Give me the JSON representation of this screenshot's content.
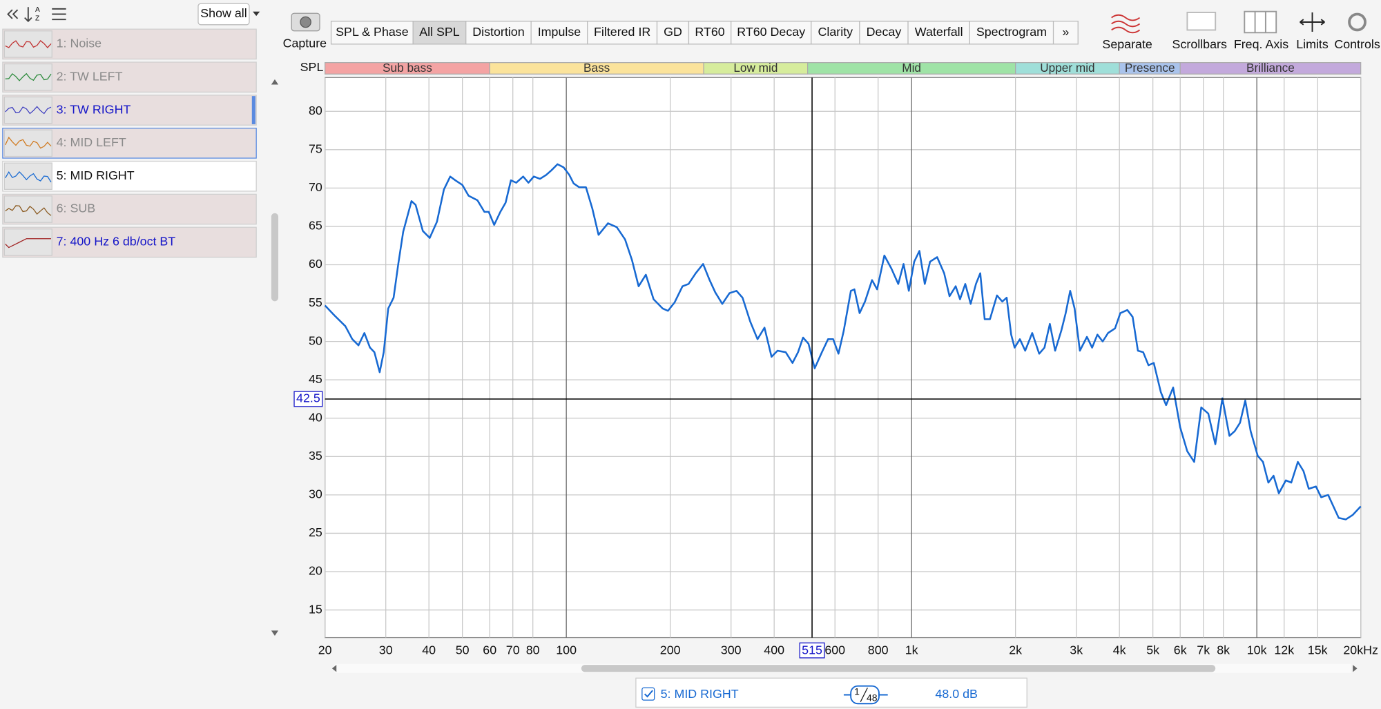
{
  "sidebar": {
    "show_all": "Show all",
    "items": [
      "1: Noise",
      "2: TW LEFT",
      "3: TW RIGHT",
      "4: MID LEFT",
      "5: MID RIGHT",
      "6: SUB",
      "7: 400 Hz 6 db/oct BT"
    ]
  },
  "toolbar": {
    "capture": "Capture",
    "tabs": [
      "SPL & Phase",
      "All SPL",
      "Distortion",
      "Impulse",
      "Filtered IR",
      "GD",
      "RT60",
      "RT60 Decay",
      "Clarity",
      "Decay",
      "Waterfall",
      "Spectrogram"
    ],
    "tools": [
      "Separate",
      "Scrollbars",
      "Freq. Axis",
      "Limits",
      "Controls"
    ]
  },
  "chart_data": {
    "type": "line",
    "y_label": "SPL",
    "log_x": true,
    "grid": true,
    "xlim": [
      20,
      20000
    ],
    "ylim": [
      11.4,
      84.4
    ],
    "xticks": [
      20,
      30,
      40,
      50,
      60,
      70,
      80,
      100,
      200,
      300,
      400,
      600,
      800,
      {
        "value": 1000,
        "label": "1k"
      },
      {
        "value": 2000,
        "label": "2k"
      },
      {
        "value": 3000,
        "label": "3k"
      },
      {
        "value": 4000,
        "label": "4k"
      },
      {
        "value": 5000,
        "label": "5k"
      },
      {
        "value": 6000,
        "label": "6k"
      },
      {
        "value": 7000,
        "label": "7k"
      },
      {
        "value": 8000,
        "label": "8k"
      },
      {
        "value": 10000,
        "label": "10k"
      },
      {
        "value": 12000,
        "label": "12k"
      },
      {
        "value": 15000,
        "label": "15k"
      },
      {
        "value": 20000,
        "label": "20kHz"
      }
    ],
    "yticks": [
      15,
      20,
      25,
      30,
      35,
      40,
      45,
      50,
      55,
      60,
      65,
      70,
      75,
      80
    ],
    "bands": [
      {
        "name": "Sub bass",
        "from": 20,
        "to": 60,
        "color": "#f4a3a3"
      },
      {
        "name": "Bass",
        "from": 60,
        "to": 250,
        "color": "#fbe39b"
      },
      {
        "name": "Low mid",
        "from": 250,
        "to": 500,
        "color": "#d6ec9c"
      },
      {
        "name": "Mid",
        "from": 500,
        "to": 2000,
        "color": "#9fe3a6"
      },
      {
        "name": "Upper mid",
        "from": 2000,
        "to": 4000,
        "color": "#9fdfd9"
      },
      {
        "name": "Presence",
        "from": 4000,
        "to": 6000,
        "color": "#a9c3ec"
      },
      {
        "name": "Brilliance",
        "from": 6000,
        "to": 20000,
        "color": "#c3a9dc"
      }
    ],
    "cursor": {
      "x": 515,
      "y": 42.5
    },
    "x": [
      20,
      21.3,
      22.9,
      24.0,
      25.0,
      26.0,
      27.0,
      27.8,
      28.8,
      29.6,
      30.5,
      31.6,
      32.6,
      33.7,
      35.6,
      36.6,
      38.4,
      40.2,
      42.2,
      44.2,
      46.1,
      47.7,
      50.0,
      52.1,
      55.3,
      57.9,
      59.6,
      61.8,
      64.4,
      66.7,
      69.1,
      71.6,
      75.0,
      77.7,
      80.5,
      83.9,
      87.4,
      90.5,
      94.3,
      98.2,
      102,
      105,
      109,
      114,
      119,
      124,
      132,
      140,
      148,
      155,
      162,
      170,
      179,
      190,
      197,
      206,
      217,
      226,
      237,
      249,
      260,
      270,
      283,
      297,
      311,
      324,
      341,
      358,
      375,
      393,
      409,
      432,
      452,
      469,
      485,
      503,
      524,
      550,
      573,
      593,
      614,
      636,
      667,
      683,
      707,
      733,
      768,
      795,
      834,
      874,
      915,
      948,
      982,
      1018,
      1054,
      1092,
      1131,
      1186,
      1243,
      1288,
      1342,
      1381,
      1431,
      1483,
      1536,
      1581,
      1628,
      1687,
      1768,
      1831,
      1886,
      1943,
      1988,
      2060,
      2134,
      2236,
      2343,
      2427,
      2515,
      2605,
      2715,
      2796,
      2880,
      2966,
      3073,
      3220,
      3334,
      3454,
      3578,
      3707,
      3884,
      4023,
      4217,
      4368,
      4525,
      4688,
      4856,
      5031,
      5272,
      5461,
      5723,
      5998,
      6286,
      6588,
      6905,
      7237,
      7585,
      7950,
      8332,
      8631,
      8941,
      9262,
      9595,
      10060,
      10420,
      10800,
      11180,
      11580,
      12140,
      12580,
      13150,
      13650,
      14140,
      14830,
      15360,
      16090,
      17270,
      18100,
      18970,
      20000
    ],
    "series": [
      {
        "name": "5: MID RIGHT",
        "color": "#1769d2",
        "values": [
          54.7,
          53.4,
          52.0,
          50.3,
          49.5,
          51.1,
          49.2,
          48.6,
          46.0,
          48.6,
          54.3,
          55.7,
          60.1,
          64.3,
          68.3,
          67.8,
          64.4,
          63.5,
          65.6,
          69.8,
          71.5,
          71.0,
          70.4,
          69.0,
          68.4,
          66.9,
          66.9,
          65.2,
          66.9,
          68.1,
          71.0,
          70.7,
          71.5,
          70.7,
          71.5,
          71.2,
          71.7,
          72.3,
          73.1,
          72.7,
          71.7,
          70.6,
          70.1,
          70.1,
          67.3,
          63.9,
          65.4,
          64.9,
          63.3,
          60.6,
          57.2,
          58.7,
          55.5,
          54.3,
          54.0,
          55.1,
          57.2,
          57.5,
          58.9,
          60.1,
          58.0,
          56.4,
          54.9,
          56.3,
          56.6,
          55.7,
          52.6,
          50.3,
          51.8,
          48.0,
          48.8,
          48.6,
          47.2,
          48.6,
          50.5,
          49.7,
          46.5,
          48.6,
          50.3,
          50.3,
          48.4,
          51.4,
          56.6,
          56.8,
          53.7,
          55.2,
          58.0,
          56.8,
          61.2,
          59.5,
          57.5,
          60.1,
          56.6,
          60.4,
          61.8,
          57.5,
          60.4,
          61.0,
          58.9,
          55.9,
          57.2,
          55.5,
          57.5,
          54.9,
          57.5,
          58.9,
          52.9,
          52.9,
          56.0,
          55.2,
          55.7,
          50.9,
          49.2,
          50.3,
          48.8,
          51.1,
          48.4,
          49.2,
          52.3,
          48.8,
          51.4,
          53.7,
          56.6,
          54.3,
          48.8,
          50.6,
          49.2,
          50.9,
          50.0,
          51.1,
          51.7,
          53.7,
          54.1,
          53.2,
          48.8,
          48.6,
          46.9,
          47.2,
          43.4,
          41.7,
          44.0,
          38.8,
          35.7,
          34.3,
          41.4,
          40.6,
          36.6,
          42.6,
          37.7,
          38.3,
          39.4,
          42.3,
          38.3,
          35.1,
          34.3,
          31.6,
          32.5,
          30.2,
          31.9,
          31.6,
          34.3,
          33.1,
          30.8,
          31.1,
          29.7,
          30.0,
          27.0,
          26.8,
          27.4,
          28.5
        ]
      }
    ]
  },
  "footer": {
    "smoothing_num": "1",
    "smoothing_den": "48",
    "level": "48.0 dB"
  }
}
